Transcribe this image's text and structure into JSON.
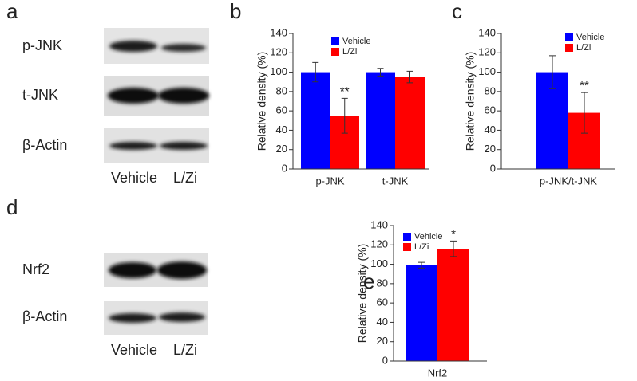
{
  "panel_labels": [
    "a",
    "b",
    "c",
    "d",
    "e"
  ],
  "blots": [
    {
      "rows": [
        "p-JNK",
        "t-JNK",
        "β-Actin"
      ],
      "lanes": [
        "Vehicle",
        "L/Zi"
      ]
    },
    {
      "rows": [
        "Nrf2",
        "β-Actin"
      ],
      "lanes": [
        "Vehicle",
        "L/Zi"
      ]
    }
  ],
  "chart_data": [
    {
      "type": "bar",
      "ylabel": "Relative density (%)",
      "categories": [
        "p-JNK",
        "t-JNK"
      ],
      "series": [
        {
          "name": "Vehicle",
          "color": "#0000ff",
          "values": [
            100,
            100
          ],
          "errors": [
            10,
            4
          ]
        },
        {
          "name": "L/Zi",
          "color": "#ff0000",
          "values": [
            55,
            95
          ],
          "errors": [
            18,
            6
          ],
          "markers": [
            "**",
            null
          ]
        }
      ],
      "ylim": [
        0,
        140
      ],
      "yticks": [
        0,
        20,
        40,
        60,
        80,
        100,
        120,
        140
      ],
      "legend": "top"
    },
    {
      "type": "bar",
      "ylabel": "Relative density (%)",
      "categories": [
        "p-JNK/t-JNK"
      ],
      "series": [
        {
          "name": "Vehicle",
          "color": "#0000ff",
          "values": [
            100
          ],
          "errors": [
            17
          ]
        },
        {
          "name": "L/Zi",
          "color": "#ff0000",
          "values": [
            58
          ],
          "errors": [
            21
          ],
          "markers": [
            "**"
          ]
        }
      ],
      "ylim": [
        0,
        140
      ],
      "yticks": [
        0,
        20,
        40,
        60,
        80,
        100,
        120,
        140
      ],
      "legend": "top-right"
    },
    {
      "type": "bar",
      "ylabel": "Relative density (%)",
      "categories": [
        "Nrf2"
      ],
      "series": [
        {
          "name": "Vehicle",
          "color": "#0000ff",
          "values": [
            99
          ],
          "errors": [
            3
          ]
        },
        {
          "name": "L/Zi",
          "color": "#ff0000",
          "values": [
            116
          ],
          "errors": [
            8
          ],
          "markers": [
            "*"
          ]
        }
      ],
      "ylim": [
        0,
        140
      ],
      "yticks": [
        0,
        20,
        40,
        60,
        80,
        100,
        120,
        140
      ],
      "legend": "top-left"
    }
  ]
}
